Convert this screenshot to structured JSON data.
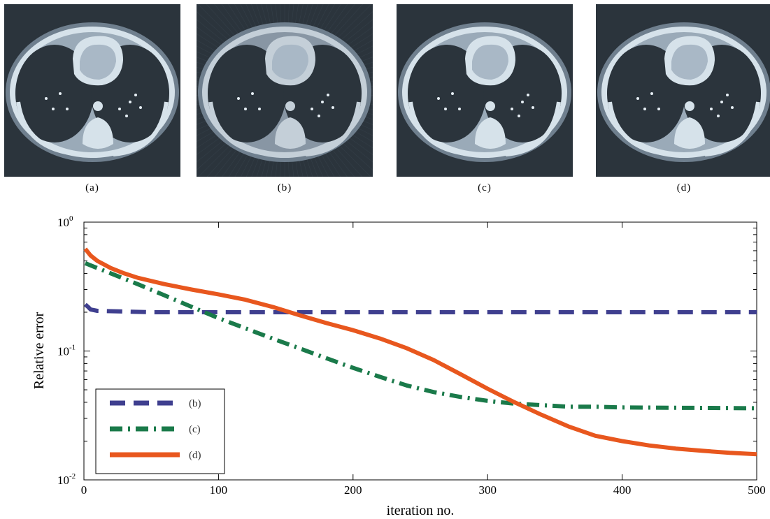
{
  "panels": [
    {
      "label": "(a)",
      "variant": "clean"
    },
    {
      "label": "(b)",
      "variant": "noisy"
    },
    {
      "label": "(c)",
      "variant": "clean"
    },
    {
      "label": "(d)",
      "variant": "clean"
    }
  ],
  "colors": {
    "panel_bg": "#2b343c",
    "series_b": "#3f3f8f",
    "series_c": "#1a7a4a",
    "series_d": "#e8571e"
  },
  "chart_data": {
    "type": "line",
    "xlabel": "iteration no.",
    "ylabel": "Relative error",
    "xlim": [
      0,
      500
    ],
    "ylim": [
      0.01,
      1
    ],
    "yscale": "log",
    "grid": false,
    "legend_position": "bottom-left",
    "xticks": [
      0,
      100,
      200,
      300,
      400,
      500
    ],
    "yticks": [
      {
        "base": "10",
        "exp": "0"
      },
      {
        "base": "10",
        "exp": "-1"
      },
      {
        "base": "10",
        "exp": "-2"
      }
    ],
    "series": [
      {
        "name": "(b)",
        "style": "dashed",
        "color": "#3f3f8f",
        "x": [
          1,
          3,
          5,
          10,
          50,
          100,
          200,
          300,
          400,
          500
        ],
        "y": [
          0.23,
          0.22,
          0.21,
          0.205,
          0.2,
          0.2,
          0.2,
          0.2,
          0.2,
          0.2
        ]
      },
      {
        "name": "(c)",
        "style": "dashdot",
        "color": "#1a7a4a",
        "x": [
          1,
          10,
          20,
          40,
          60,
          80,
          100,
          120,
          140,
          160,
          180,
          200,
          220,
          240,
          260,
          280,
          300,
          320,
          340,
          360,
          380,
          400,
          450,
          500
        ],
        "y": [
          0.48,
          0.44,
          0.4,
          0.33,
          0.27,
          0.22,
          0.18,
          0.15,
          0.125,
          0.105,
          0.088,
          0.074,
          0.063,
          0.054,
          0.048,
          0.044,
          0.041,
          0.039,
          0.038,
          0.037,
          0.037,
          0.0365,
          0.0362,
          0.036
        ]
      },
      {
        "name": "(d)",
        "style": "solid",
        "color": "#e8571e",
        "x": [
          1,
          5,
          10,
          20,
          30,
          40,
          60,
          80,
          100,
          120,
          140,
          160,
          180,
          200,
          220,
          240,
          260,
          280,
          300,
          320,
          340,
          360,
          380,
          400,
          420,
          440,
          460,
          480,
          500
        ],
        "y": [
          0.62,
          0.55,
          0.5,
          0.44,
          0.4,
          0.37,
          0.33,
          0.3,
          0.275,
          0.25,
          0.22,
          0.19,
          0.165,
          0.145,
          0.125,
          0.105,
          0.085,
          0.066,
          0.051,
          0.04,
          0.032,
          0.026,
          0.022,
          0.02,
          0.0185,
          0.0175,
          0.0168,
          0.0162,
          0.0158
        ]
      }
    ]
  }
}
